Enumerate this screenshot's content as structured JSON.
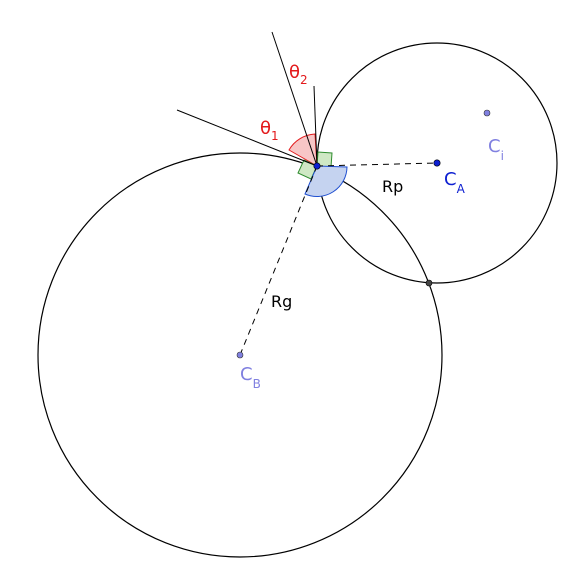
{
  "labels": {
    "theta1": "θ",
    "theta1_sub": "1",
    "theta2": "θ",
    "theta2_sub": "2",
    "rp": "Rp",
    "rg": "Rg",
    "ca": "C",
    "ca_sub": "A",
    "cb": "C",
    "cb_sub": "B",
    "ci": "C",
    "ci_sub": "i"
  },
  "colors": {
    "line": "#000000",
    "theta": "#e31a1c",
    "center_a": "#0d1fd1",
    "center_b": "#8080e0",
    "center_i": "#8080e0",
    "angle_red_fill": "#f7c6c6",
    "angle_green_fill": "#cfe8c4",
    "angle_blue_fill": "#c5d3f0"
  }
}
